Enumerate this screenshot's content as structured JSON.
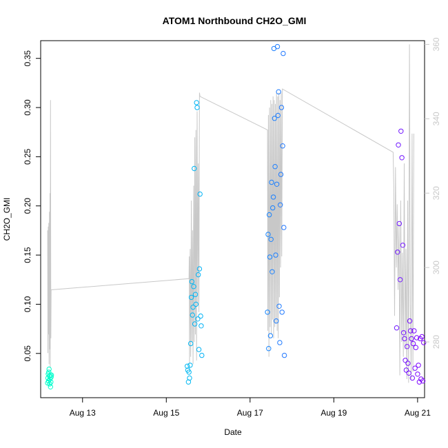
{
  "chart_data": {
    "type": "scatter",
    "title": "ATOM1 Northbound CH2O_GMI",
    "xlabel": "Date",
    "ylabel": "CH2O_GMI",
    "xlim": [
      "2016-08-12T00:00",
      "2016-08-21T04:00"
    ],
    "ylim": [
      0.005,
      0.368
    ],
    "x_ticks": [
      {
        "label": "Aug 13",
        "value": "2016-08-13T00:00"
      },
      {
        "label": "Aug 15",
        "value": "2016-08-15T00:00"
      },
      {
        "label": "Aug 17",
        "value": "2016-08-17T00:00"
      },
      {
        "label": "Aug 19",
        "value": "2016-08-19T00:00"
      },
      {
        "label": "Aug 21",
        "value": "2016-08-21T00:00"
      }
    ],
    "y_ticks": [
      0.05,
      0.1,
      0.15,
      0.2,
      0.25,
      0.3,
      0.35
    ],
    "y_tick_labels": [
      "0.05",
      "0.10",
      "0.15",
      "0.20",
      "0.25",
      "0.30",
      "0.35"
    ],
    "y2lim": [
      265,
      361
    ],
    "y2_ticks": [
      280,
      300,
      320,
      340,
      360
    ],
    "y2_tick_labels": [
      "280",
      "300",
      "320",
      "340",
      "360"
    ],
    "grid": false,
    "colors": {
      "points_start": "#00ffcc",
      "points_end": "#8000ff",
      "line": "#c8c8c8",
      "axis": "#000000",
      "axis_right": "#c8c8c8"
    },
    "series": [
      {
        "kind": "points",
        "points": [
          [
            "2016-08-12T04:00",
            0.02
          ],
          [
            "2016-08-12T04:10",
            0.025
          ],
          [
            "2016-08-12T04:20",
            0.029
          ],
          [
            "2016-08-12T04:30",
            0.022
          ],
          [
            "2016-08-12T04:40",
            0.031
          ],
          [
            "2016-08-12T04:50",
            0.034
          ],
          [
            "2016-08-12T05:00",
            0.027
          ],
          [
            "2016-08-12T05:10",
            0.019
          ],
          [
            "2016-08-12T05:20",
            0.024
          ],
          [
            "2016-08-12T05:30",
            0.028
          ],
          [
            "2016-08-12T05:40",
            0.016
          ],
          [
            "2016-08-12T05:50",
            0.021
          ],
          [
            "2016-08-12T06:00",
            0.026
          ],
          [
            "2016-08-12T06:10",
            0.028
          ],
          [
            "2016-08-15T12:00",
            0.037
          ],
          [
            "2016-08-15T12:20",
            0.033
          ],
          [
            "2016-08-15T12:40",
            0.021
          ],
          [
            "2016-08-15T13:00",
            0.031
          ],
          [
            "2016-08-15T13:20",
            0.025
          ],
          [
            "2016-08-15T13:40",
            0.038
          ],
          [
            "2016-08-15T14:00",
            0.06
          ],
          [
            "2016-08-15T14:20",
            0.107
          ],
          [
            "2016-08-15T14:40",
            0.123
          ],
          [
            "2016-08-15T15:00",
            0.089
          ],
          [
            "2016-08-15T15:20",
            0.097
          ],
          [
            "2016-08-15T15:40",
            0.118
          ],
          [
            "2016-08-15T16:00",
            0.238
          ],
          [
            "2016-08-15T16:20",
            0.08
          ],
          [
            "2016-08-15T16:40",
            0.11
          ],
          [
            "2016-08-15T17:00",
            0.1
          ],
          [
            "2016-08-15T17:20",
            0.305
          ],
          [
            "2016-08-15T17:40",
            0.3
          ],
          [
            "2016-08-15T18:00",
            0.085
          ],
          [
            "2016-08-15T18:20",
            0.13
          ],
          [
            "2016-08-15T18:40",
            0.054
          ],
          [
            "2016-08-15T19:00",
            0.136
          ],
          [
            "2016-08-15T19:20",
            0.212
          ],
          [
            "2016-08-15T19:40",
            0.088
          ],
          [
            "2016-08-15T20:00",
            0.078
          ],
          [
            "2016-08-15T20:20",
            0.048
          ],
          [
            "2016-08-17T10:00",
            0.092
          ],
          [
            "2016-08-17T10:20",
            0.171
          ],
          [
            "2016-08-17T10:40",
            0.055
          ],
          [
            "2016-08-17T11:00",
            0.191
          ],
          [
            "2016-08-17T11:20",
            0.148
          ],
          [
            "2016-08-17T11:40",
            0.068
          ],
          [
            "2016-08-17T12:00",
            0.166
          ],
          [
            "2016-08-17T12:20",
            0.224
          ],
          [
            "2016-08-17T12:40",
            0.133
          ],
          [
            "2016-08-17T13:00",
            0.198
          ],
          [
            "2016-08-17T13:20",
            0.209
          ],
          [
            "2016-08-17T13:40",
            0.36
          ],
          [
            "2016-08-17T14:00",
            0.289
          ],
          [
            "2016-08-17T14:20",
            0.24
          ],
          [
            "2016-08-17T14:40",
            0.15
          ],
          [
            "2016-08-17T15:00",
            0.083
          ],
          [
            "2016-08-17T15:20",
            0.222
          ],
          [
            "2016-08-17T15:40",
            0.362
          ],
          [
            "2016-08-17T16:00",
            0.292
          ],
          [
            "2016-08-17T16:20",
            0.316
          ],
          [
            "2016-08-17T16:40",
            0.098
          ],
          [
            "2016-08-17T17:00",
            0.061
          ],
          [
            "2016-08-17T17:20",
            0.201
          ],
          [
            "2016-08-17T17:40",
            0.232
          ],
          [
            "2016-08-17T18:00",
            0.3
          ],
          [
            "2016-08-17T18:20",
            0.092
          ],
          [
            "2016-08-17T18:40",
            0.261
          ],
          [
            "2016-08-17T19:00",
            0.355
          ],
          [
            "2016-08-17T19:20",
            0.178
          ],
          [
            "2016-08-17T19:40",
            0.048
          ],
          [
            "2016-08-20T12:00",
            0.076
          ],
          [
            "2016-08-20T12:30",
            0.153
          ],
          [
            "2016-08-20T13:00",
            0.262
          ],
          [
            "2016-08-20T13:30",
            0.182
          ],
          [
            "2016-08-20T14:00",
            0.125
          ],
          [
            "2016-08-20T14:30",
            0.276
          ],
          [
            "2016-08-20T15:00",
            0.249
          ],
          [
            "2016-08-20T15:30",
            0.16
          ],
          [
            "2016-08-20T16:00",
            0.071
          ],
          [
            "2016-08-20T16:30",
            0.065
          ],
          [
            "2016-08-20T17:00",
            0.043
          ],
          [
            "2016-08-20T17:30",
            0.033
          ],
          [
            "2016-08-20T18:00",
            0.057
          ],
          [
            "2016-08-20T18:30",
            0.04
          ],
          [
            "2016-08-20T19:00",
            0.03
          ],
          [
            "2016-08-20T19:30",
            0.083
          ],
          [
            "2016-08-20T20:00",
            0.073
          ],
          [
            "2016-08-20T20:30",
            0.065
          ],
          [
            "2016-08-20T21:00",
            0.025
          ],
          [
            "2016-08-20T21:30",
            0.06
          ],
          [
            "2016-08-20T22:00",
            0.073
          ],
          [
            "2016-08-20T22:30",
            0.035
          ],
          [
            "2016-08-20T23:00",
            0.056
          ],
          [
            "2016-08-20T23:30",
            0.066
          ],
          [
            "2016-08-21T00:00",
            0.029
          ],
          [
            "2016-08-21T00:30",
            0.038
          ],
          [
            "2016-08-21T01:00",
            0.021
          ],
          [
            "2016-08-21T01:30",
            0.065
          ],
          [
            "2016-08-21T02:00",
            0.024
          ],
          [
            "2016-08-21T02:30",
            0.067
          ],
          [
            "2016-08-21T03:00",
            0.022
          ],
          [
            "2016-08-21T03:30",
            0.061
          ]
        ]
      },
      {
        "kind": "line",
        "axis": "right",
        "points": [
          [
            "2016-08-12T04:00",
            310
          ],
          [
            "2016-08-12T04:10",
            277
          ],
          [
            "2016-08-12T04:20",
            311
          ],
          [
            "2016-08-12T04:30",
            282
          ],
          [
            "2016-08-12T04:40",
            312
          ],
          [
            "2016-08-12T04:50",
            274
          ],
          [
            "2016-08-12T05:00",
            315
          ],
          [
            "2016-08-12T05:10",
            278
          ],
          [
            "2016-08-12T05:20",
            320
          ],
          [
            "2016-08-12T05:30",
            273
          ],
          [
            "2016-08-12T05:40",
            345
          ],
          [
            "2016-08-12T05:50",
            281
          ],
          [
            "2016-08-12T06:00",
            294
          ],
          [
            "2016-08-15T13:00",
            297
          ],
          [
            "2016-08-15T13:10",
            303
          ],
          [
            "2016-08-15T13:20",
            274
          ],
          [
            "2016-08-15T13:40",
            305
          ],
          [
            "2016-08-15T14:00",
            276
          ],
          [
            "2016-08-15T14:20",
            318
          ],
          [
            "2016-08-15T14:40",
            280
          ],
          [
            "2016-08-15T15:00",
            310
          ],
          [
            "2016-08-15T15:20",
            274
          ],
          [
            "2016-08-15T15:40",
            322
          ],
          [
            "2016-08-15T16:00",
            280
          ],
          [
            "2016-08-15T16:20",
            335
          ],
          [
            "2016-08-15T16:40",
            282
          ],
          [
            "2016-08-15T17:00",
            337
          ],
          [
            "2016-08-15T17:20",
            275
          ],
          [
            "2016-08-15T17:40",
            342
          ],
          [
            "2016-08-15T18:00",
            290
          ],
          [
            "2016-08-15T18:20",
            328
          ],
          [
            "2016-08-15T18:40",
            288
          ],
          [
            "2016-08-15T19:00",
            347
          ],
          [
            "2016-08-15T19:20",
            346
          ],
          [
            "2016-08-17T10:00",
            337
          ],
          [
            "2016-08-17T10:10",
            283
          ],
          [
            "2016-08-17T10:30",
            341
          ],
          [
            "2016-08-17T10:50",
            276
          ],
          [
            "2016-08-17T11:10",
            343
          ],
          [
            "2016-08-17T11:30",
            284
          ],
          [
            "2016-08-17T11:50",
            345
          ],
          [
            "2016-08-17T12:10",
            282
          ],
          [
            "2016-08-17T12:30",
            344
          ],
          [
            "2016-08-17T12:50",
            286
          ],
          [
            "2016-08-17T13:10",
            346
          ],
          [
            "2016-08-17T13:30",
            281
          ],
          [
            "2016-08-17T13:50",
            345
          ],
          [
            "2016-08-17T14:10",
            284
          ],
          [
            "2016-08-17T14:30",
            344
          ],
          [
            "2016-08-17T14:50",
            285
          ],
          [
            "2016-08-17T15:10",
            347
          ],
          [
            "2016-08-17T15:30",
            283
          ],
          [
            "2016-08-17T15:50",
            346
          ],
          [
            "2016-08-17T16:10",
            281
          ],
          [
            "2016-08-17T16:30",
            347
          ],
          [
            "2016-08-17T16:50",
            292
          ],
          [
            "2016-08-17T17:10",
            345
          ],
          [
            "2016-08-17T17:30",
            300
          ],
          [
            "2016-08-17T17:50",
            347
          ],
          [
            "2016-08-17T18:10",
            303
          ],
          [
            "2016-08-17T18:30",
            348
          ],
          [
            "2016-08-20T10:00",
            331
          ],
          [
            "2016-08-20T10:20",
            322
          ],
          [
            "2016-08-20T10:50",
            287
          ],
          [
            "2016-08-20T11:20",
            327
          ],
          [
            "2016-08-20T11:50",
            300
          ],
          [
            "2016-08-20T12:20",
            317
          ],
          [
            "2016-08-20T12:50",
            294
          ],
          [
            "2016-08-20T13:20",
            312
          ],
          [
            "2016-08-20T13:50",
            271
          ],
          [
            "2016-08-20T14:20",
            318
          ],
          [
            "2016-08-20T14:50",
            280
          ],
          [
            "2016-08-20T15:20",
            304
          ],
          [
            "2016-08-20T15:50",
            276
          ],
          [
            "2016-08-20T16:20",
            328
          ],
          [
            "2016-08-20T16:50",
            278
          ],
          [
            "2016-08-20T17:20",
            305
          ],
          [
            "2016-08-20T17:50",
            270
          ],
          [
            "2016-08-20T18:20",
            318
          ],
          [
            "2016-08-20T18:50",
            269
          ],
          [
            "2016-08-20T19:20",
            360
          ],
          [
            "2016-08-20T19:50",
            290
          ],
          [
            "2016-08-20T20:20",
            270
          ],
          [
            "2016-08-20T20:50",
            336
          ],
          [
            "2016-08-20T21:20",
            272
          ],
          [
            "2016-08-20T21:50",
            336
          ]
        ]
      }
    ]
  }
}
